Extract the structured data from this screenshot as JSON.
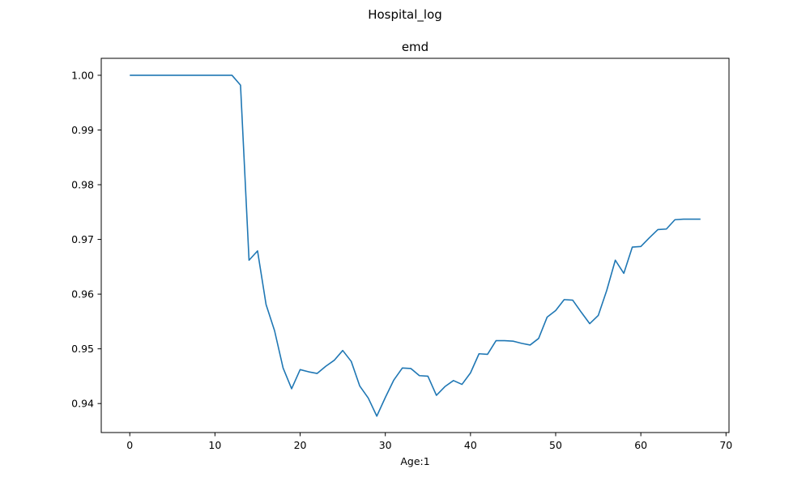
{
  "figure": {
    "suptitle": "Hospital_log"
  },
  "chart_data": {
    "type": "line",
    "title": "emd",
    "xlabel": "Age:1",
    "ylabel": "",
    "xlim": [
      -3.35,
      70.35
    ],
    "ylim": [
      0.9347,
      1.0031
    ],
    "xticks": [
      0,
      10,
      20,
      30,
      40,
      50,
      60,
      70
    ],
    "xtick_labels": [
      "0",
      "10",
      "20",
      "30",
      "40",
      "50",
      "60",
      "70"
    ],
    "yticks": [
      0.94,
      0.95,
      0.96,
      0.97,
      0.98,
      0.99,
      1.0
    ],
    "ytick_labels": [
      "0.94",
      "0.95",
      "0.96",
      "0.97",
      "0.98",
      "0.99",
      "1.00"
    ],
    "grid": false,
    "line_color": "#1f77b4",
    "series": [
      {
        "x": [
          0,
          1,
          2,
          3,
          4,
          5,
          6,
          7,
          8,
          9,
          10,
          11,
          12,
          13,
          14,
          15,
          16,
          17,
          18,
          19,
          20,
          21,
          22,
          23,
          24,
          25,
          26,
          27,
          28,
          29,
          30,
          31,
          32,
          33,
          34,
          35,
          36,
          37,
          38,
          39,
          40,
          41,
          42,
          43,
          44,
          45,
          46,
          47,
          48,
          49,
          50,
          51,
          52,
          53,
          54,
          55,
          56,
          57,
          58,
          59,
          60,
          61,
          62,
          63,
          64,
          65,
          66,
          67
        ],
        "values": [
          1.0,
          1.0,
          1.0,
          1.0,
          1.0,
          1.0,
          1.0,
          1.0,
          1.0,
          1.0,
          1.0,
          1.0,
          1.0,
          0.9982,
          0.9662,
          0.9679,
          0.9581,
          0.9533,
          0.9465,
          0.9427,
          0.9462,
          0.9458,
          0.9455,
          0.9468,
          0.9479,
          0.9497,
          0.9477,
          0.9432,
          0.941,
          0.9377,
          0.9411,
          0.9443,
          0.9465,
          0.9464,
          0.9451,
          0.945,
          0.9415,
          0.9431,
          0.9442,
          0.9435,
          0.9456,
          0.9491,
          0.949,
          0.9515,
          0.9515,
          0.9514,
          0.951,
          0.9507,
          0.9519,
          0.9558,
          0.957,
          0.959,
          0.9589,
          0.9567,
          0.9546,
          0.9561,
          0.9607,
          0.9662,
          0.9638,
          0.9686,
          0.9687,
          0.9703,
          0.9718,
          0.9719,
          0.9736,
          0.9737,
          0.9737,
          0.9737
        ]
      }
    ]
  }
}
